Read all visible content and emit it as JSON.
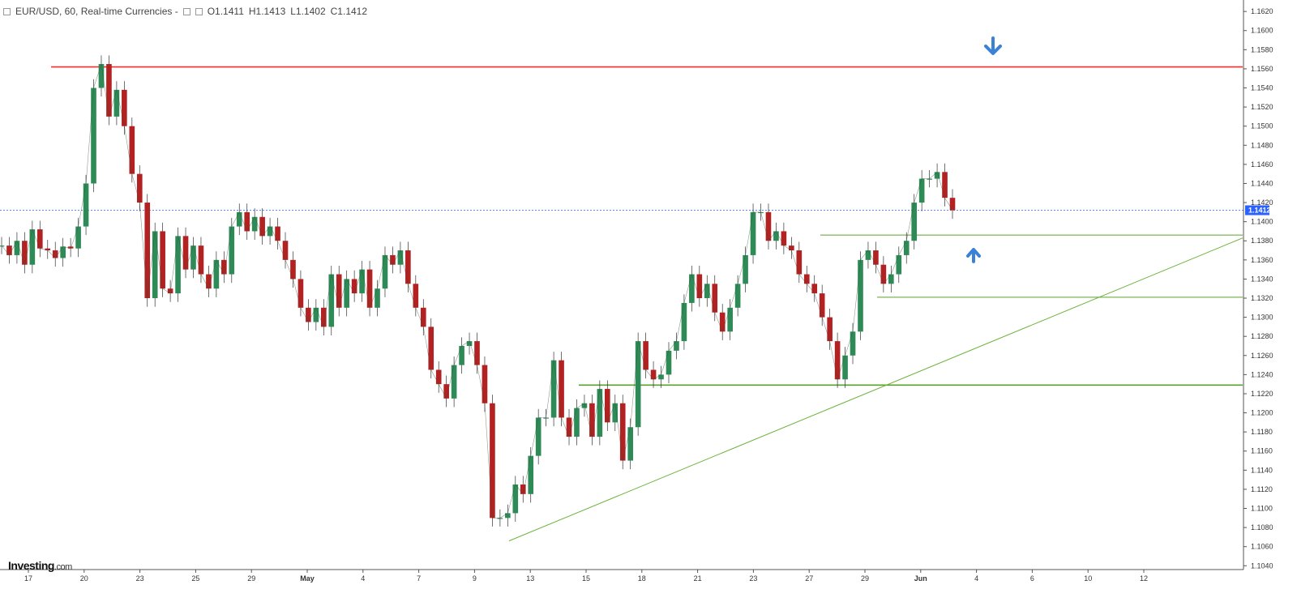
{
  "header": {
    "symbol": "EUR/USD, 60, Real-time Currencies -",
    "open": "O1.1411",
    "high": "H1.1413",
    "low": "L1.1402",
    "close": "C1.1412"
  },
  "logo": {
    "name": "Investing",
    "suffix": ".com"
  },
  "colors": {
    "up": "#2e8b57",
    "down": "#b22222",
    "resistance": "#ff2a2a",
    "support": "#5aa02c",
    "trendline": "#6cb33a",
    "current_price_line": "#2962ff",
    "arrows": "#3b82d6"
  },
  "chart_data": {
    "type": "line",
    "subtype": "candlestick (approximated by close path)",
    "x_tick_labels": [
      "17",
      "20",
      "23",
      "25",
      "29",
      "May",
      "4",
      "7",
      "9",
      "13",
      "15",
      "18",
      "21",
      "23",
      "27",
      "29",
      "Jun",
      "4",
      "6",
      "10",
      "12"
    ],
    "y_tick_labels": [
      "1.1620",
      "1.1600",
      "1.1580",
      "1.1560",
      "1.1540",
      "1.1520",
      "1.1500",
      "1.1480",
      "1.1460",
      "1.1440",
      "1.1420",
      "1.1400",
      "1.1380",
      "1.1360",
      "1.1340",
      "1.1320",
      "1.1300",
      "1.1280",
      "1.1260",
      "1.1240",
      "1.1220",
      "1.1200",
      "1.1180",
      "1.1160",
      "1.1140",
      "1.1120",
      "1.1100",
      "1.1080",
      "1.1060",
      "1.1040"
    ],
    "ylim": [
      1.1036,
      1.1632
    ],
    "current_price": "1.1412",
    "series": [
      {
        "values": [
          1.1375,
          1.1365,
          1.138,
          1.1355,
          1.1392,
          1.1372,
          1.137,
          1.1362,
          1.1374,
          1.1372,
          1.1395,
          1.144,
          1.154,
          1.1565,
          1.151,
          1.1538,
          1.15,
          1.145,
          1.142,
          1.132,
          1.139,
          1.133,
          1.1325,
          1.1385,
          1.135,
          1.1375,
          1.1345,
          1.133,
          1.136,
          1.1345,
          1.1395,
          1.141,
          1.139,
          1.1405,
          1.1385,
          1.1395,
          1.138,
          1.136,
          1.134,
          1.131,
          1.1295,
          1.131,
          1.129,
          1.1345,
          1.131,
          1.134,
          1.1325,
          1.135,
          1.131,
          1.133,
          1.1365,
          1.1355,
          1.137,
          1.1335,
          1.131,
          1.129,
          1.1245,
          1.123,
          1.1215,
          1.125,
          1.127,
          1.1275,
          1.125,
          1.121,
          1.109,
          1.109,
          1.1095,
          1.1125,
          1.1115,
          1.1155,
          1.1195,
          1.1195,
          1.1255,
          1.1195,
          1.1175,
          1.1205,
          1.121,
          1.1175,
          1.1225,
          1.119,
          1.121,
          1.115,
          1.1185,
          1.1275,
          1.1245,
          1.1235,
          1.124,
          1.1265,
          1.1275,
          1.1315,
          1.1345,
          1.132,
          1.1335,
          1.1305,
          1.1285,
          1.131,
          1.1335,
          1.1365,
          1.141,
          1.141,
          1.138,
          1.139,
          1.1375,
          1.137,
          1.1345,
          1.1335,
          1.1325,
          1.13,
          1.1275,
          1.1235,
          1.126,
          1.1285,
          1.136,
          1.137,
          1.1355,
          1.1335,
          1.1345,
          1.1365,
          1.138,
          1.142,
          1.1445,
          1.1445,
          1.1452,
          1.1425,
          1.1412
        ]
      }
    ],
    "annotations": [
      {
        "type": "horizontal",
        "label": "resistance",
        "y": 1.1562
      },
      {
        "type": "horizontal",
        "label": "support",
        "y": 1.1386
      },
      {
        "type": "horizontal",
        "label": "support",
        "y": 1.1321
      },
      {
        "type": "horizontal",
        "label": "support",
        "y": 1.1229
      },
      {
        "type": "trendline",
        "label": "rising support",
        "from": 1.1066,
        "to": 1.1383
      },
      {
        "type": "arrow",
        "direction": "down",
        "near": 1.1582
      },
      {
        "type": "arrow",
        "direction": "up",
        "near": 1.1365
      }
    ]
  }
}
